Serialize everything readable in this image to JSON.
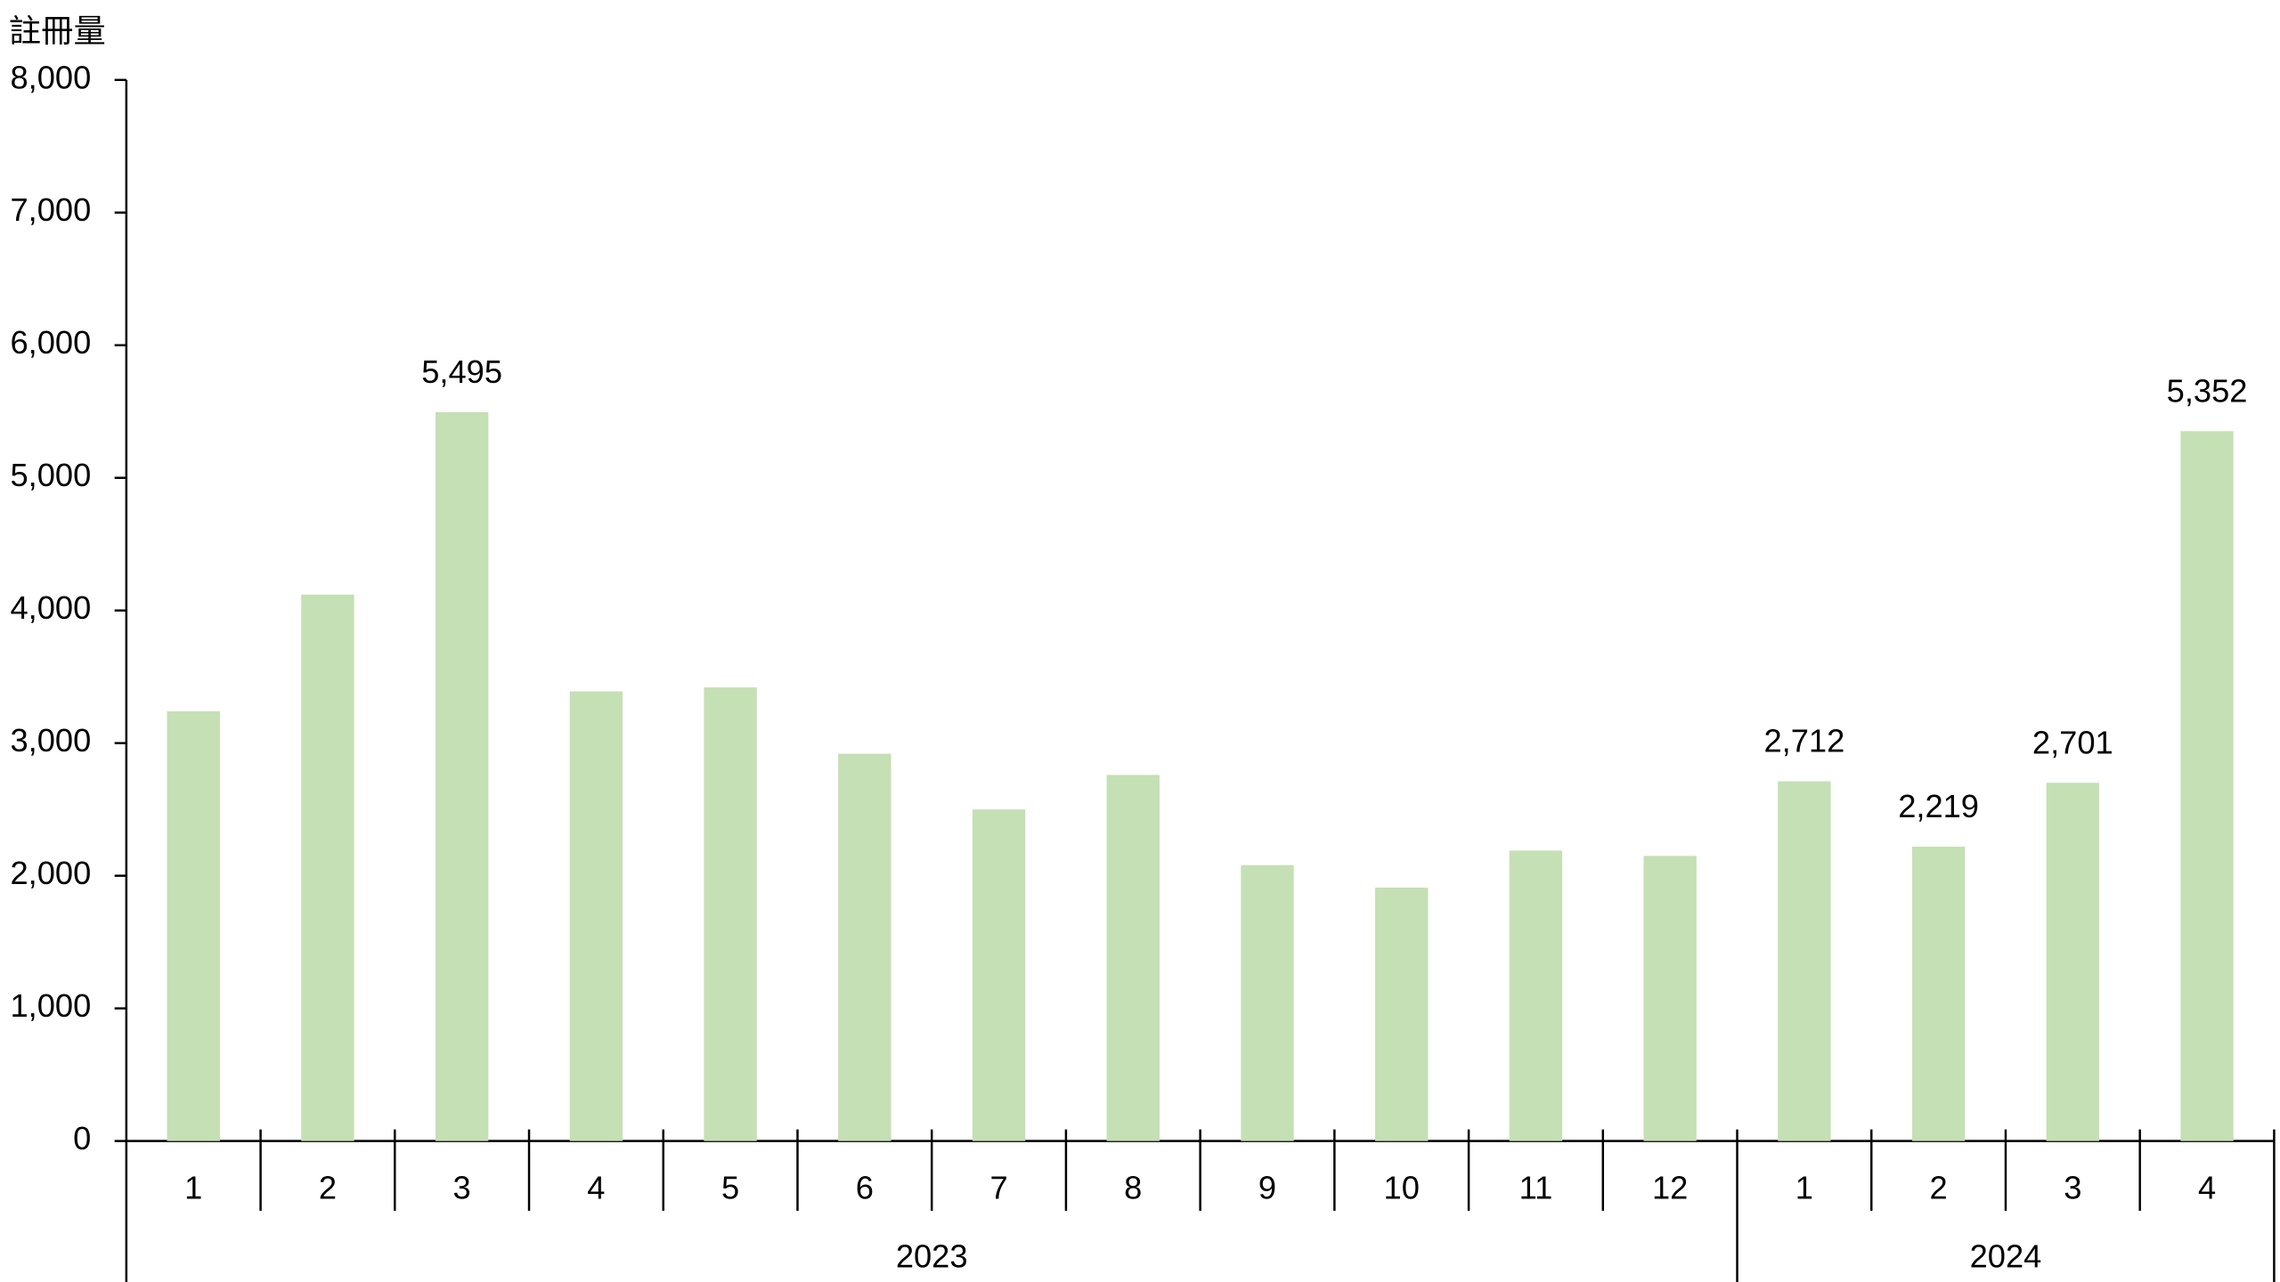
{
  "chart_data": {
    "type": "bar",
    "y_label": "註冊量",
    "color": "#c5e0b4",
    "ylim": [
      0,
      8000
    ],
    "yticks": [
      0,
      {
        "value": 1000,
        "label": "1,000"
      },
      {
        "value": 2000,
        "label": "2,000"
      },
      {
        "value": 3000,
        "label": "3,000"
      },
      {
        "value": 4000,
        "label": "4,000"
      },
      {
        "value": 5000,
        "label": "5,000"
      },
      {
        "value": 6000,
        "label": "6,000"
      },
      {
        "value": 7000,
        "label": "7,000"
      },
      {
        "value": 8000,
        "label": "8,000"
      }
    ],
    "groups": [
      {
        "name": "2023",
        "categories": [
          "1",
          "2",
          "3",
          "4",
          "5",
          "6",
          "7",
          "8",
          "9",
          "10",
          "11",
          "12"
        ],
        "values": [
          3240,
          4120,
          5495,
          3390,
          3420,
          2920,
          2500,
          2760,
          2080,
          1910,
          2190,
          2150
        ],
        "value_labels": [
          null,
          null,
          "5,495",
          null,
          null,
          null,
          null,
          null,
          null,
          null,
          null,
          null
        ]
      },
      {
        "name": "2024",
        "categories": [
          "1",
          "2",
          "3",
          "4"
        ],
        "values": [
          2712,
          2219,
          2701,
          5352
        ],
        "value_labels": [
          "2,712",
          "2,219",
          "2,701",
          "5,352"
        ]
      }
    ]
  }
}
